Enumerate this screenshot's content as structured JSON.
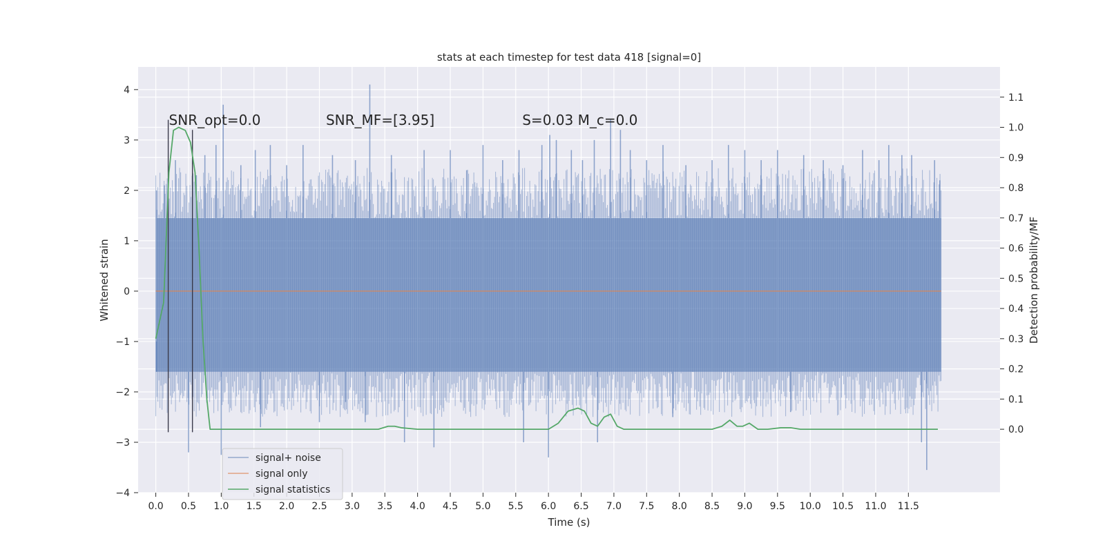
{
  "chart_data": {
    "type": "line",
    "title": "stats at each timestep for test data 418 [signal=0]",
    "xlabel": "Time (s)",
    "ylabel_left": "Whitened strain",
    "ylabel_right": "Detection probability/MF",
    "xlim": [
      -0.27,
      12.9
    ],
    "ylim_left": [
      -4.0,
      4.45
    ],
    "ylim_right": [
      -0.21,
      1.2
    ],
    "x_ticks": [
      0.0,
      0.5,
      1.0,
      1.5,
      2.0,
      2.5,
      3.0,
      3.5,
      4.0,
      4.5,
      5.0,
      5.5,
      6.0,
      6.5,
      7.0,
      7.5,
      8.0,
      8.5,
      9.0,
      9.5,
      10.0,
      10.5,
      11.0,
      11.5
    ],
    "x_tick_labels": [
      "0.0",
      "0.5",
      "1.0",
      "1.5",
      "2.0",
      "2.5",
      "3.0",
      "3.5",
      "4.0",
      "4.5",
      "5.0",
      "5.5",
      "6.0",
      "6.5",
      "7.0",
      "7.5",
      "8.0",
      "8.5",
      "9.0",
      "9.5",
      "10.0",
      "10.5",
      "11.0",
      "11.5"
    ],
    "y_left_ticks": [
      4,
      3,
      2,
      1,
      0,
      -1,
      -2,
      -3,
      -4
    ],
    "y_left_tick_labels": [
      "4",
      "3",
      "2",
      "1",
      "0",
      "−1",
      "−2",
      "−3",
      "−4"
    ],
    "y_right_ticks": [
      1.1,
      1.0,
      0.9,
      0.8,
      0.7,
      0.6,
      0.5,
      0.4,
      0.3,
      0.2,
      0.1,
      0.0
    ],
    "y_right_tick_labels": [
      "1.1",
      "1.0",
      "0.9",
      "0.8",
      "0.7",
      "0.6",
      "0.5",
      "0.4",
      "0.3",
      "0.2",
      "0.1",
      "0.0"
    ],
    "grid": true,
    "legend_position": "lower-left",
    "annotations": [
      {
        "text": "SNR_opt=0.0",
        "x": 0.2,
        "y": 3.3
      },
      {
        "text": "SNR_MF=[3.95]",
        "x": 2.6,
        "y": 3.3
      },
      {
        "text": "S=0.03   M_c=0.0",
        "x": 5.6,
        "y": 3.3
      }
    ],
    "vlines": [
      {
        "x": 0.19,
        "ymin": -2.8,
        "ymax": 3.4
      },
      {
        "x": 0.56,
        "ymin": -2.8,
        "ymax": 3.2
      }
    ],
    "series": [
      {
        "name": "signal+ noise",
        "axis": "left",
        "color": "#4c72b0",
        "x_range": [
          0.0,
          12.0
        ],
        "core_band": [
          -1.6,
          1.45
        ],
        "spikes": [
          {
            "x": 0.01,
            "y": 2.0
          },
          {
            "x": 0.01,
            "y": -1.0
          },
          {
            "x": 0.13,
            "y": 2.1
          },
          {
            "x": 0.3,
            "y": 2.6
          },
          {
            "x": 0.5,
            "y": -3.2
          },
          {
            "x": 0.62,
            "y": 2.3
          },
          {
            "x": 0.75,
            "y": 2.7
          },
          {
            "x": 0.92,
            "y": 2.9
          },
          {
            "x": 1.03,
            "y": 3.7
          },
          {
            "x": 1.0,
            "y": -3.25
          },
          {
            "x": 1.3,
            "y": 2.5
          },
          {
            "x": 1.52,
            "y": 2.8
          },
          {
            "x": 1.6,
            "y": -2.7
          },
          {
            "x": 1.75,
            "y": 2.9
          },
          {
            "x": 2.0,
            "y": 2.5
          },
          {
            "x": 2.25,
            "y": 2.9
          },
          {
            "x": 2.5,
            "y": -2.6
          },
          {
            "x": 2.7,
            "y": 2.7
          },
          {
            "x": 2.9,
            "y": -2.2
          },
          {
            "x": 3.05,
            "y": 2.6
          },
          {
            "x": 3.27,
            "y": 4.1
          },
          {
            "x": 3.2,
            "y": -2.6
          },
          {
            "x": 3.6,
            "y": 2.7
          },
          {
            "x": 3.8,
            "y": -3.0
          },
          {
            "x": 4.1,
            "y": 2.8
          },
          {
            "x": 4.25,
            "y": -3.1
          },
          {
            "x": 4.5,
            "y": 2.8
          },
          {
            "x": 4.75,
            "y": 2.4
          },
          {
            "x": 5.0,
            "y": 2.9
          },
          {
            "x": 5.3,
            "y": 2.6
          },
          {
            "x": 5.55,
            "y": 2.8
          },
          {
            "x": 5.62,
            "y": -3.0
          },
          {
            "x": 5.9,
            "y": 2.9
          },
          {
            "x": 6.02,
            "y": 3.1
          },
          {
            "x": 6.12,
            "y": 3.0
          },
          {
            "x": 6.0,
            "y": -3.3
          },
          {
            "x": 6.35,
            "y": 2.8
          },
          {
            "x": 6.52,
            "y": 2.6
          },
          {
            "x": 6.7,
            "y": 3.0
          },
          {
            "x": 6.75,
            "y": -3.0
          },
          {
            "x": 6.95,
            "y": 3.4
          },
          {
            "x": 7.1,
            "y": 3.2
          },
          {
            "x": 7.25,
            "y": 2.8
          },
          {
            "x": 7.5,
            "y": 2.6
          },
          {
            "x": 7.75,
            "y": 2.9
          },
          {
            "x": 7.9,
            "y": -2.5
          },
          {
            "x": 8.1,
            "y": 2.5
          },
          {
            "x": 8.5,
            "y": 2.6
          },
          {
            "x": 8.75,
            "y": 2.9
          },
          {
            "x": 9.0,
            "y": 2.8
          },
          {
            "x": 9.25,
            "y": 2.6
          },
          {
            "x": 9.5,
            "y": 2.8
          },
          {
            "x": 9.7,
            "y": -2.4
          },
          {
            "x": 9.9,
            "y": 2.7
          },
          {
            "x": 10.2,
            "y": 2.6
          },
          {
            "x": 10.5,
            "y": 2.5
          },
          {
            "x": 10.8,
            "y": 2.8
          },
          {
            "x": 11.05,
            "y": 2.6
          },
          {
            "x": 11.2,
            "y": 2.9
          },
          {
            "x": 11.4,
            "y": 2.7
          },
          {
            "x": 11.55,
            "y": 2.7
          },
          {
            "x": 11.7,
            "y": -3.0
          },
          {
            "x": 11.78,
            "y": -3.55
          },
          {
            "x": 11.9,
            "y": 2.6
          },
          {
            "x": 11.98,
            "y": 2.2
          }
        ]
      },
      {
        "name": "signal only",
        "axis": "left",
        "color": "#dd8452",
        "x": [
          0.0,
          12.0
        ],
        "y": [
          0.0,
          0.0
        ]
      },
      {
        "name": "signal statistics",
        "axis": "right",
        "color": "#55a868",
        "x": [
          0.0,
          0.12,
          0.2,
          0.27,
          0.35,
          0.45,
          0.53,
          0.6,
          0.66,
          0.72,
          0.78,
          0.83,
          1.0,
          2.0,
          3.0,
          3.4,
          3.55,
          3.65,
          3.75,
          4.0,
          4.5,
          5.0,
          5.5,
          5.8,
          6.0,
          6.15,
          6.3,
          6.45,
          6.55,
          6.65,
          6.75,
          6.85,
          6.95,
          7.05,
          7.15,
          7.3,
          7.6,
          8.0,
          8.5,
          8.65,
          8.77,
          8.88,
          8.97,
          9.07,
          9.2,
          9.35,
          9.55,
          9.7,
          9.85,
          10.0,
          10.5,
          11.0,
          11.5,
          11.95
        ],
        "y": [
          0.3,
          0.42,
          0.85,
          0.99,
          1.0,
          0.99,
          0.95,
          0.85,
          0.6,
          0.3,
          0.1,
          0.0,
          0.0,
          0.0,
          0.0,
          0.0,
          0.01,
          0.01,
          0.005,
          0.0,
          0.0,
          0.0,
          0.0,
          0.0,
          0.0,
          0.02,
          0.06,
          0.07,
          0.06,
          0.02,
          0.01,
          0.04,
          0.05,
          0.01,
          0.0,
          0.0,
          0.0,
          0.0,
          0.0,
          0.01,
          0.03,
          0.01,
          0.01,
          0.02,
          0.0,
          0.0,
          0.005,
          0.005,
          0.0,
          0.0,
          0.0,
          0.0,
          0.0,
          0.0
        ]
      }
    ]
  }
}
